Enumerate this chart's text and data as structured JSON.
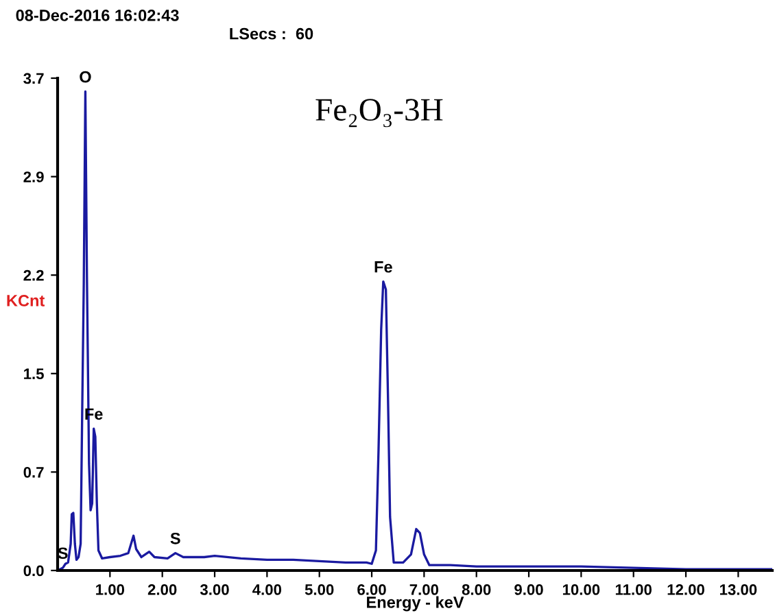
{
  "chart_data": {
    "type": "line",
    "title": "Fe₂O₃-3H",
    "xlabel": "Energy - keV",
    "ylabel": "KCnt",
    "annotations": [
      "08-Dec-2016 16:02:43",
      "LSecs :  60",
      {
        "text": "S",
        "x": 0.1,
        "y": 0.02
      },
      {
        "text": "O",
        "x": 0.53,
        "y": 3.58
      },
      {
        "text": "Fe",
        "x": 0.69,
        "y": 1.06
      },
      {
        "text": "S",
        "x": 2.25,
        "y": 0.13
      },
      {
        "text": "Fe",
        "x": 6.22,
        "y": 2.16
      }
    ],
    "x": [
      0.0,
      0.1,
      0.15,
      0.2,
      0.25,
      0.27,
      0.3,
      0.33,
      0.36,
      0.4,
      0.44,
      0.47,
      0.5,
      0.53,
      0.56,
      0.6,
      0.63,
      0.66,
      0.69,
      0.72,
      0.75,
      0.78,
      0.85,
      1.0,
      1.2,
      1.35,
      1.45,
      1.5,
      1.6,
      1.75,
      1.85,
      2.1,
      2.25,
      2.4,
      2.8,
      3.0,
      3.5,
      4.0,
      4.5,
      5.0,
      5.5,
      5.9,
      6.0,
      6.08,
      6.13,
      6.18,
      6.22,
      6.27,
      6.31,
      6.35,
      6.42,
      6.6,
      6.75,
      6.85,
      6.92,
      7.0,
      7.1,
      7.5,
      8.0,
      9.0,
      10.0,
      11.0,
      12.0,
      13.0,
      13.65
    ],
    "series": [
      {
        "color": "#1a1aa0",
        "values": [
          0.0,
          0.02,
          0.05,
          0.06,
          0.2,
          0.42,
          0.43,
          0.2,
          0.08,
          0.1,
          0.2,
          1.2,
          2.15,
          3.58,
          2.2,
          0.8,
          0.45,
          0.5,
          1.06,
          1.0,
          0.5,
          0.15,
          0.09,
          0.1,
          0.11,
          0.13,
          0.26,
          0.16,
          0.1,
          0.14,
          0.1,
          0.09,
          0.13,
          0.1,
          0.1,
          0.11,
          0.09,
          0.08,
          0.08,
          0.07,
          0.06,
          0.06,
          0.05,
          0.15,
          0.9,
          1.8,
          2.16,
          2.1,
          1.3,
          0.4,
          0.06,
          0.06,
          0.12,
          0.31,
          0.28,
          0.12,
          0.04,
          0.04,
          0.03,
          0.03,
          0.03,
          0.02,
          0.01,
          0.01,
          0.01
        ]
      }
    ],
    "xlim": [
      0,
      13.65
    ],
    "ylim": [
      0,
      3.68
    ],
    "xticks": [
      {
        "value": 1,
        "label": "1.00"
      },
      {
        "value": 2,
        "label": "2.00"
      },
      {
        "value": 3,
        "label": "3.00"
      },
      {
        "value": 4,
        "label": "4.00"
      },
      {
        "value": 5,
        "label": "5.00"
      },
      {
        "value": 6,
        "label": "6.00"
      },
      {
        "value": 7,
        "label": "7.00"
      },
      {
        "value": 8,
        "label": "8.00"
      },
      {
        "value": 9,
        "label": "9.00"
      },
      {
        "value": 10,
        "label": "10.00"
      },
      {
        "value": 11,
        "label": "11.00"
      },
      {
        "value": 12,
        "label": "12.00"
      },
      {
        "value": 13,
        "label": "13.00"
      }
    ],
    "yticks": [
      {
        "value": 0,
        "label": "0.0"
      },
      {
        "value": 0.736,
        "label": "0.7"
      },
      {
        "value": 1.472,
        "label": "1.5"
      },
      {
        "value": 2.208,
        "label": "2.2"
      },
      {
        "value": 2.944,
        "label": "2.9"
      },
      {
        "value": 3.68,
        "label": "3.7"
      }
    ],
    "grid": false,
    "legend": false,
    "marker": "none",
    "line_style": "solid"
  }
}
